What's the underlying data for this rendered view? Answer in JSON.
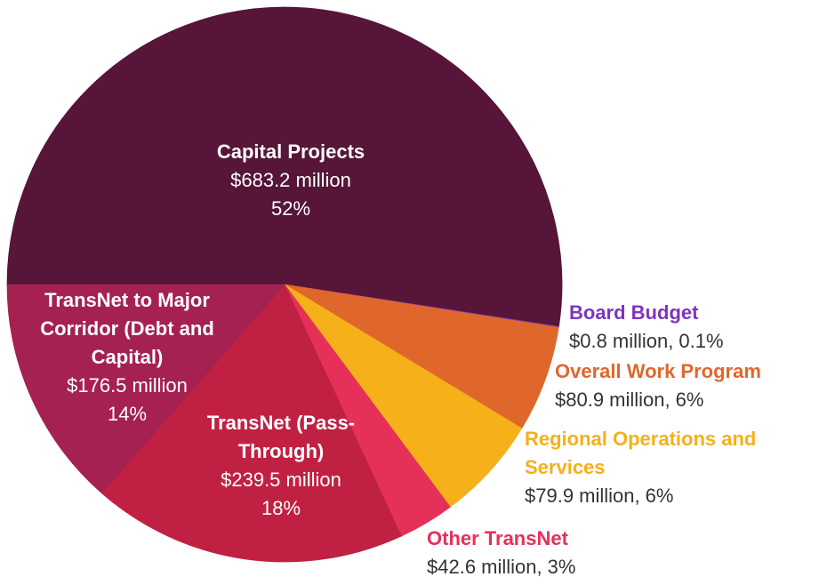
{
  "chart_data": {
    "type": "pie",
    "categories": [
      "Capital Projects",
      "Board Budget",
      "Overall Work Program",
      "Regional Operations and Services",
      "Other TransNet",
      "TransNet (Pass-Through)",
      "TransNet to Major Corridor (Debt and Capital)"
    ],
    "values": [
      683.2,
      0.8,
      80.9,
      79.9,
      42.6,
      239.5,
      176.5
    ],
    "value_labels": [
      "$683.2 million",
      "$0.8 million,",
      "$80.9 million,",
      "$79.9 million,",
      "$42.6 million,",
      "$239.5 million",
      "$176.5 million"
    ],
    "percents": [
      52,
      0.1,
      6,
      6,
      3,
      18,
      14
    ],
    "percent_labels": [
      "52%",
      "0.1%",
      "6%",
      "6%",
      "3%",
      "18%",
      "14%"
    ],
    "colors": [
      "#561539",
      "#7b35c0",
      "#e0672b",
      "#f5b01a",
      "#e5305a",
      "#c02142",
      "#a52152"
    ]
  }
}
